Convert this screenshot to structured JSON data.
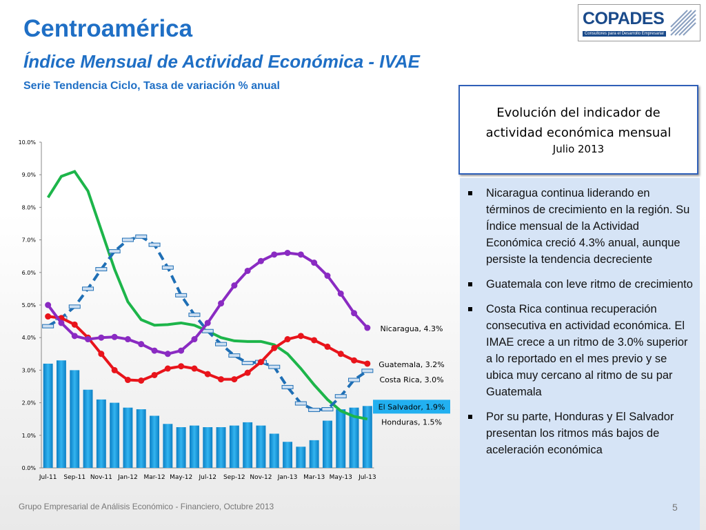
{
  "header": {
    "title": "Centroamérica",
    "subtitle": "Índice Mensual de Actividad Económica - IVAE",
    "note": "Serie Tendencia Ciclo, Tasa de variación % anual",
    "logo": "COPADES",
    "logo_tagline": "Consultores para el Desarrollo Empresarial"
  },
  "chart_data": {
    "type": "bar",
    "categories": [
      "Jul-11",
      null,
      "Sep-11",
      null,
      "Nov-11",
      null,
      "Jan-12",
      null,
      "Mar-12",
      null,
      "May-12",
      null,
      "Jul-12",
      null,
      "Sep-12",
      null,
      "Nov-12",
      null,
      "Jan-13",
      null,
      "Mar-13",
      null,
      "May-13",
      null,
      "Jul-13"
    ],
    "ylim": [
      0,
      10
    ],
    "yticks": [
      {
        "value": 0,
        "label": "0.0%"
      },
      {
        "value": 1,
        "label": "1.0%"
      },
      {
        "value": 2,
        "label": "2.0%"
      },
      {
        "value": 3,
        "label": "3.0%"
      },
      {
        "value": 4,
        "label": "4.0%"
      },
      {
        "value": 5,
        "label": "5.0%"
      },
      {
        "value": 6,
        "label": "6.0%"
      },
      {
        "value": 7,
        "label": "7.0%"
      },
      {
        "value": 8,
        "label": "8.0%"
      },
      {
        "value": 9,
        "label": "9.0%"
      },
      {
        "value": 10,
        "label": "10.0%"
      }
    ],
    "grid": false,
    "series": [
      {
        "name": "El Salvador",
        "type": "bar",
        "color": "#1e9fe3",
        "values": [
          3.2,
          3.3,
          3.0,
          2.4,
          2.1,
          2.0,
          1.85,
          1.8,
          1.6,
          1.35,
          1.25,
          1.3,
          1.25,
          1.25,
          1.3,
          1.4,
          1.3,
          1.05,
          0.8,
          0.65,
          0.85,
          1.45,
          1.8,
          1.85,
          1.9
        ],
        "end_label": "El Salvador, 1.9%"
      },
      {
        "name": "Honduras",
        "type": "line",
        "color": "#1db54a",
        "marker": "none",
        "values": [
          8.3,
          8.95,
          9.1,
          8.5,
          7.3,
          6.1,
          5.1,
          4.55,
          4.38,
          4.4,
          4.45,
          4.38,
          4.2,
          4.0,
          3.9,
          3.88,
          3.88,
          3.78,
          3.5,
          3.05,
          2.55,
          2.1,
          1.75,
          1.58,
          1.5
        ],
        "end_label": "Honduras, 1.5%"
      },
      {
        "name": "Costa Rica",
        "type": "line",
        "color": "#1f6fb5",
        "marker": "rect",
        "dashed": true,
        "values": [
          4.35,
          4.6,
          4.95,
          5.5,
          6.1,
          6.65,
          7.0,
          7.1,
          6.85,
          6.15,
          5.3,
          4.7,
          4.2,
          3.8,
          3.45,
          3.22,
          3.25,
          3.1,
          2.48,
          1.98,
          1.78,
          1.8,
          2.2,
          2.7,
          2.98
        ],
        "end_label": "Costa Rica, 3.0%"
      },
      {
        "name": "Guatemala",
        "type": "line",
        "color": "#e8141b",
        "marker": "circle",
        "values": [
          4.65,
          4.6,
          4.4,
          4.0,
          3.5,
          3.0,
          2.7,
          2.68,
          2.85,
          3.05,
          3.12,
          3.05,
          2.88,
          2.72,
          2.72,
          2.92,
          3.25,
          3.68,
          3.95,
          4.05,
          3.92,
          3.72,
          3.5,
          3.3,
          3.2
        ],
        "end_label": "Guatemala, 3.2%"
      },
      {
        "name": "Nicaragua",
        "type": "line",
        "color": "#8a2bc2",
        "marker": "circle",
        "values": [
          5.0,
          4.45,
          4.05,
          3.95,
          4.0,
          4.02,
          3.95,
          3.8,
          3.6,
          3.5,
          3.6,
          3.95,
          4.45,
          5.05,
          5.6,
          6.05,
          6.35,
          6.55,
          6.6,
          6.55,
          6.3,
          5.9,
          5.35,
          4.75,
          4.3
        ],
        "end_label": "Nicaragua, 4.3%"
      }
    ]
  },
  "panel": {
    "heading": "Evolución del indicador de actividad económica mensual",
    "date": "Julio 2013",
    "bullets": [
      "Nicaragua continua liderando en términos de crecimiento en la región. Su Índice mensual de la Actividad Económica creció 4.3% anual, aunque persiste la tendencia decreciente",
      "Guatemala con leve ritmo de crecimiento",
      "Costa Rica continua recuperación consecutiva en  actividad económica.  El IMAE crece a un ritmo de  3.0% superior a lo reportado en el mes previo y se ubica muy cercano al ritmo de su par Guatemala",
      "Por su parte, Honduras y El Salvador presentan los ritmos más bajos de aceleración económica"
    ]
  },
  "footer": {
    "text": "Grupo Empresarial de Análisis Económico - Financiero, Octubre 2013",
    "page": "5"
  }
}
